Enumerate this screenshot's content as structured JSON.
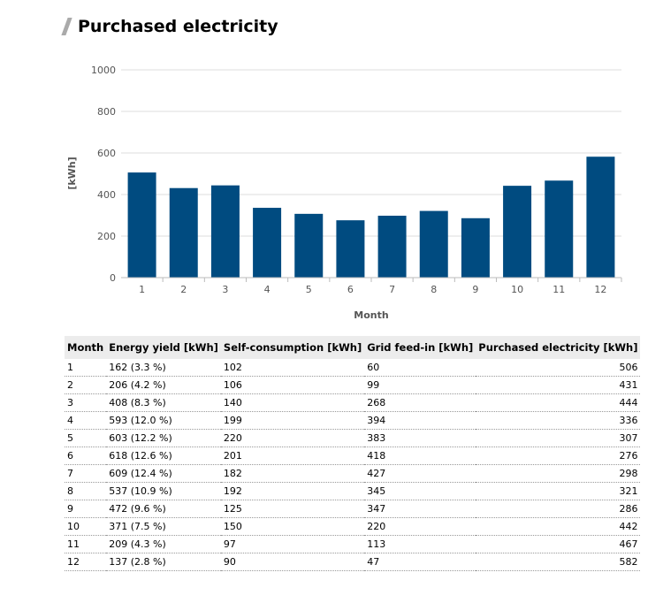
{
  "title": "Purchased electricity",
  "chart_data": {
    "type": "bar",
    "title": "Purchased electricity",
    "xlabel": "Month",
    "ylabel": "[kWh]",
    "categories": [
      "1",
      "2",
      "3",
      "4",
      "5",
      "6",
      "7",
      "8",
      "9",
      "10",
      "11",
      "12"
    ],
    "values": [
      506,
      431,
      444,
      336,
      307,
      276,
      298,
      321,
      286,
      442,
      467,
      582
    ],
    "ylim": [
      0,
      1000
    ],
    "yticks": [
      "0",
      "200",
      "400",
      "600",
      "800",
      "1000"
    ],
    "grid": true,
    "color": "#004b80"
  },
  "table": {
    "headers": [
      "Month",
      "Energy yield [kWh]",
      "Self-consumption [kWh]",
      "Grid feed-in [kWh]",
      "Purchased electricity [kWh]"
    ],
    "rows": [
      [
        "1",
        "162 (3.3 %)",
        "102",
        "60",
        "506"
      ],
      [
        "2",
        "206 (4.2 %)",
        "106",
        "99",
        "431"
      ],
      [
        "3",
        "408 (8.3 %)",
        "140",
        "268",
        "444"
      ],
      [
        "4",
        "593 (12.0 %)",
        "199",
        "394",
        "336"
      ],
      [
        "5",
        "603 (12.2 %)",
        "220",
        "383",
        "307"
      ],
      [
        "6",
        "618 (12.6 %)",
        "201",
        "418",
        "276"
      ],
      [
        "7",
        "609 (12.4 %)",
        "182",
        "427",
        "298"
      ],
      [
        "8",
        "537 (10.9 %)",
        "192",
        "345",
        "321"
      ],
      [
        "9",
        "472 (9.6 %)",
        "125",
        "347",
        "286"
      ],
      [
        "10",
        "371 (7.5 %)",
        "150",
        "220",
        "442"
      ],
      [
        "11",
        "209 (4.3 %)",
        "97",
        "113",
        "467"
      ],
      [
        "12",
        "137 (2.8 %)",
        "90",
        "47",
        "582"
      ]
    ]
  }
}
